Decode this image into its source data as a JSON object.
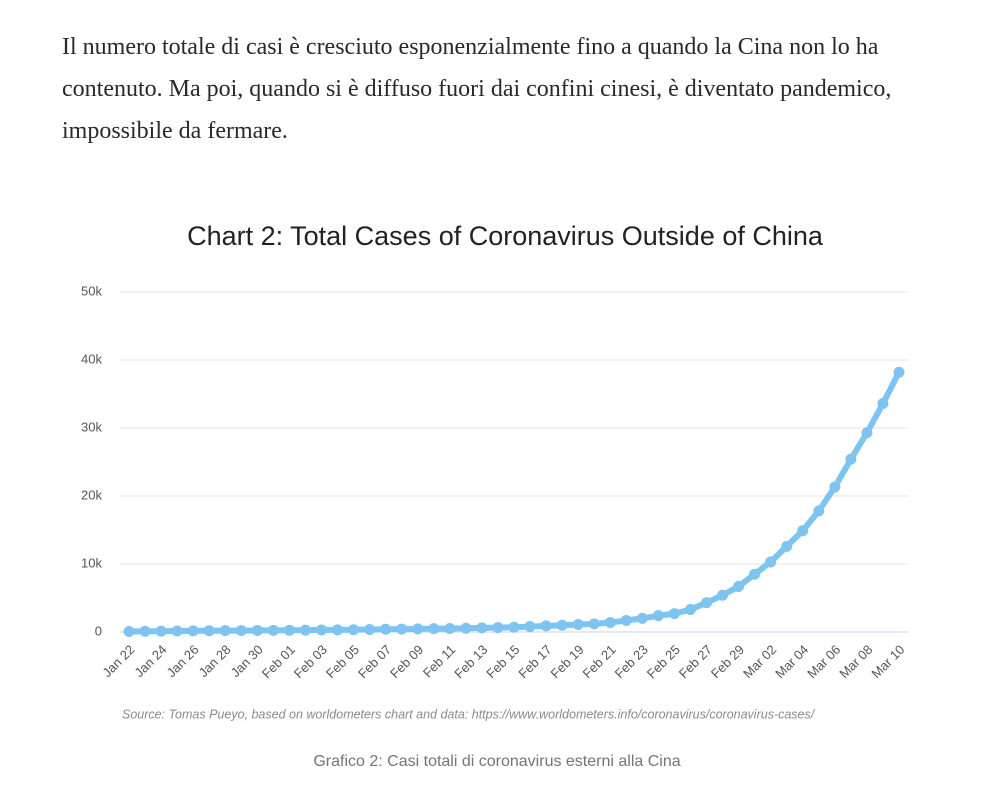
{
  "paragraph": "Il numero totale di casi è cresciuto esponenzialmente fino a quando la Cina non lo ha contenuto. Ma poi, quando si è diffuso fuori dai confini cinesi, è diventato pandemico, impossibile da fermare.",
  "caption": "Grafico 2: Casi totali di coronavirus esterni alla Cina",
  "chart_data": {
    "type": "line",
    "title": "Chart 2: Total Cases of Coronavirus Outside of China",
    "source": "Source: Tomas Pueyo, based on worldometers chart and data: https://www.worldometers.info/coronavirus/coronavirus-cases/",
    "categories": [
      "Jan 22",
      null,
      "Jan 24",
      null,
      "Jan 26",
      null,
      "Jan 28",
      null,
      "Jan 30",
      null,
      "Feb 01",
      null,
      "Feb 03",
      null,
      "Feb 05",
      null,
      "Feb 07",
      null,
      "Feb 09",
      null,
      "Feb 11",
      null,
      "Feb 13",
      null,
      "Feb 15",
      null,
      "Feb 17",
      null,
      "Feb 19",
      null,
      "Feb 21",
      null,
      "Feb 23",
      null,
      "Feb 25",
      null,
      "Feb 27",
      null,
      "Feb 29",
      null,
      "Mar 02",
      null,
      "Mar 04",
      null,
      "Mar 06",
      null,
      "Mar 08",
      null,
      "Mar 10"
    ],
    "series": [
      {
        "name": "Total Cases",
        "color": "#7dc4f0",
        "values": [
          80,
          100,
          120,
          140,
          160,
          180,
          200,
          210,
          220,
          240,
          250,
          280,
          300,
          320,
          340,
          370,
          400,
          430,
          460,
          490,
          520,
          560,
          600,
          640,
          700,
          800,
          900,
          1000,
          1100,
          1200,
          1400,
          1700,
          2000,
          2400,
          2700,
          3300,
          4300,
          5400,
          6700,
          8500,
          10300,
          12600,
          14900,
          17800,
          21300,
          25400,
          29300,
          33600,
          38200
        ]
      }
    ],
    "ylim": [
      0,
      50000
    ],
    "yticks": [
      0,
      {
        "value": 10000,
        "label": "10k"
      },
      {
        "value": 20000,
        "label": "20k"
      },
      {
        "value": 30000,
        "label": "30k"
      },
      {
        "value": 40000,
        "label": "40k"
      },
      {
        "value": 50000,
        "label": "50k"
      }
    ],
    "grid": true
  }
}
